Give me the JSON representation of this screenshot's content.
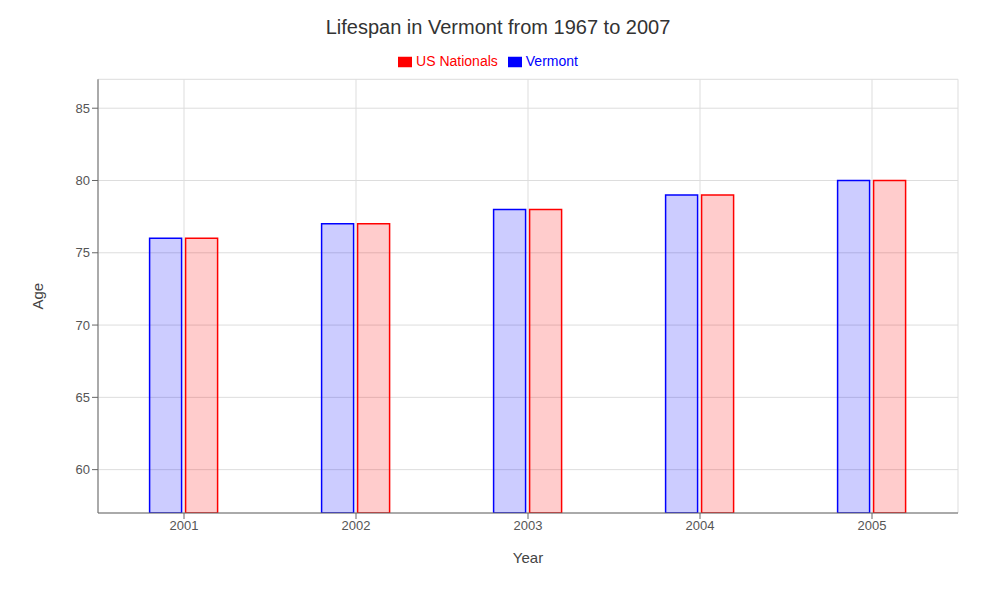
{
  "chart_data": {
    "type": "bar",
    "title": "Lifespan in Vermont from 1967 to 2007",
    "x_label": "Year",
    "y_label": "Age",
    "categories": [
      "2001",
      "2002",
      "2003",
      "2004",
      "2005"
    ],
    "series": [
      {
        "name": "Vermont",
        "color": "#0000ff",
        "values": [
          76,
          77,
          78,
          79,
          80
        ]
      },
      {
        "name": "US Nationals",
        "color": "#ff0000",
        "values": [
          76,
          77,
          78,
          79,
          80
        ]
      }
    ],
    "ylim": [
      57,
      87
    ],
    "yticks": [
      60,
      65,
      70,
      75,
      80,
      85
    ],
    "grid": true,
    "legend": "top"
  }
}
